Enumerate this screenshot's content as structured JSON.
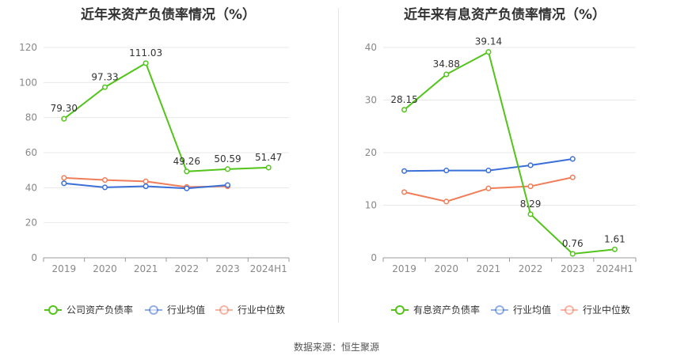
{
  "source_label": "数据来源：恒生聚源",
  "chart_data": [
    {
      "type": "line",
      "title": "近年来资产负债率情况（%）",
      "categories": [
        "2019",
        "2020",
        "2021",
        "2022",
        "2023",
        "2024H1"
      ],
      "ylim": [
        0,
        120
      ],
      "yticks": [
        0,
        20,
        40,
        60,
        80,
        100,
        120
      ],
      "grid": true,
      "legend_position": "bottom",
      "series": [
        {
          "name": "公司资产负债率",
          "color": "#52c41a",
          "values": [
            79.3,
            97.33,
            111.03,
            49.26,
            50.59,
            51.47
          ],
          "labels": [
            "79.30",
            "97.33",
            "111.03",
            "49.26",
            "50.59",
            "51.47"
          ]
        },
        {
          "name": "行业均值",
          "color": "#3a6fd8",
          "values": [
            42.5,
            40.2,
            40.8,
            39.6,
            41.5,
            null
          ],
          "labels": []
        },
        {
          "name": "行业中位数",
          "color": "#f07c58",
          "values": [
            45.6,
            44.4,
            43.6,
            40.4,
            40.8,
            null
          ],
          "labels": []
        }
      ]
    },
    {
      "type": "line",
      "title": "近年来有息资产负债率情况（%）",
      "categories": [
        "2019",
        "2020",
        "2021",
        "2022",
        "2023",
        "2024H1"
      ],
      "ylim": [
        0,
        40
      ],
      "yticks": [
        0,
        10,
        20,
        30,
        40
      ],
      "grid": true,
      "legend_position": "bottom",
      "series": [
        {
          "name": "有息资产负债率",
          "color": "#52c41a",
          "values": [
            28.15,
            34.88,
            39.14,
            8.29,
            0.76,
            1.61
          ],
          "labels": [
            "28.15",
            "34.88",
            "39.14",
            "8.29",
            "0.76",
            "1.61"
          ]
        },
        {
          "name": "行业均值",
          "color": "#3a6fd8",
          "values": [
            16.5,
            16.6,
            16.6,
            17.6,
            18.8,
            null
          ],
          "labels": []
        },
        {
          "name": "行业中位数",
          "color": "#f07c58",
          "values": [
            12.5,
            10.7,
            13.2,
            13.6,
            15.3,
            null
          ],
          "labels": []
        }
      ]
    }
  ]
}
